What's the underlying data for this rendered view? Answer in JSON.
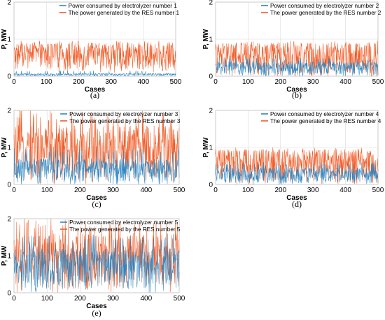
{
  "colors": {
    "consumed": "#2e86c1",
    "generated": "#f15a24"
  },
  "chart_data": [
    {
      "type": "line",
      "label": "(a)",
      "xlabel": "Cases",
      "ylabel": "P, MW",
      "xlim": [
        0,
        500
      ],
      "ylim": [
        0,
        2
      ],
      "xticks": [
        0,
        100,
        200,
        300,
        400,
        500
      ],
      "yticks": [
        0,
        1,
        2
      ],
      "legend_position": "top-right",
      "grid": true,
      "series": [
        {
          "name": "Power consumed by electrolyzer number 1",
          "color": "consumed",
          "min": 0.0,
          "max": 0.15,
          "typical_max": 0.08
        },
        {
          "name": "The power generated by the RES number 1",
          "color": "generated",
          "min": 0.1,
          "max": 0.95,
          "typical_max": 0.9
        }
      ]
    },
    {
      "type": "line",
      "label": "(b)",
      "xlabel": "Cases",
      "ylabel": "P, MW",
      "xlim": [
        0,
        500
      ],
      "ylim": [
        0,
        2
      ],
      "xticks": [
        0,
        100,
        200,
        300,
        400,
        500
      ],
      "yticks": [
        0,
        1,
        2
      ],
      "legend_position": "top-right",
      "grid": true,
      "series": [
        {
          "name": "Power consumed by electrolyzer number 2",
          "color": "consumed",
          "min": 0.0,
          "max": 0.5,
          "typical_max": 0.4
        },
        {
          "name": "The power generated by the RES number 2",
          "color": "generated",
          "min": 0.0,
          "max": 0.95,
          "typical_max": 0.9
        }
      ]
    },
    {
      "type": "line",
      "label": "(c)",
      "xlabel": "Cases",
      "ylabel": "P, MW",
      "xlim": [
        0,
        500
      ],
      "ylim": [
        0,
        2
      ],
      "xticks": [
        0,
        100,
        200,
        300,
        400,
        500
      ],
      "yticks": [
        0,
        1,
        2
      ],
      "legend_position": "top-right",
      "grid": true,
      "series": [
        {
          "name": "Power consumed by electrolyzer number 3",
          "color": "consumed",
          "min": 0.0,
          "max": 1.0,
          "typical_max": 0.7
        },
        {
          "name": "The power generated by the RES number 3",
          "color": "generated",
          "min": 0.0,
          "max": 2.0,
          "typical_max": 1.6
        }
      ]
    },
    {
      "type": "line",
      "label": "(d)",
      "xlabel": "Cases",
      "ylabel": "P, MW",
      "xlim": [
        0,
        500
      ],
      "ylim": [
        0,
        2
      ],
      "xticks": [
        0,
        100,
        200,
        300,
        400,
        500
      ],
      "yticks": [
        0,
        1,
        2
      ],
      "legend_position": "top-right",
      "grid": true,
      "series": [
        {
          "name": "Power consumed by electrolyzer number 4",
          "color": "consumed",
          "min": 0.0,
          "max": 0.6,
          "typical_max": 0.45
        },
        {
          "name": "The power generated by the RES number 4",
          "color": "generated",
          "min": 0.0,
          "max": 1.0,
          "typical_max": 0.95
        }
      ]
    },
    {
      "type": "line",
      "label": "(e)",
      "xlabel": "Cases",
      "ylabel": "P, MW",
      "xlim": [
        0,
        500
      ],
      "ylim": [
        0,
        2
      ],
      "xticks": [
        0,
        100,
        200,
        300,
        400,
        500
      ],
      "yticks": [
        0,
        1,
        2
      ],
      "legend_position": "top-right",
      "grid": true,
      "series": [
        {
          "name": "Power consumed by electrolyzer number 5",
          "color": "consumed",
          "min": 0.0,
          "max": 1.6,
          "typical_max": 1.2
        },
        {
          "name": "The power generated by the RES number 5",
          "color": "generated",
          "min": 0.0,
          "max": 2.0,
          "typical_max": 1.6
        }
      ]
    }
  ]
}
